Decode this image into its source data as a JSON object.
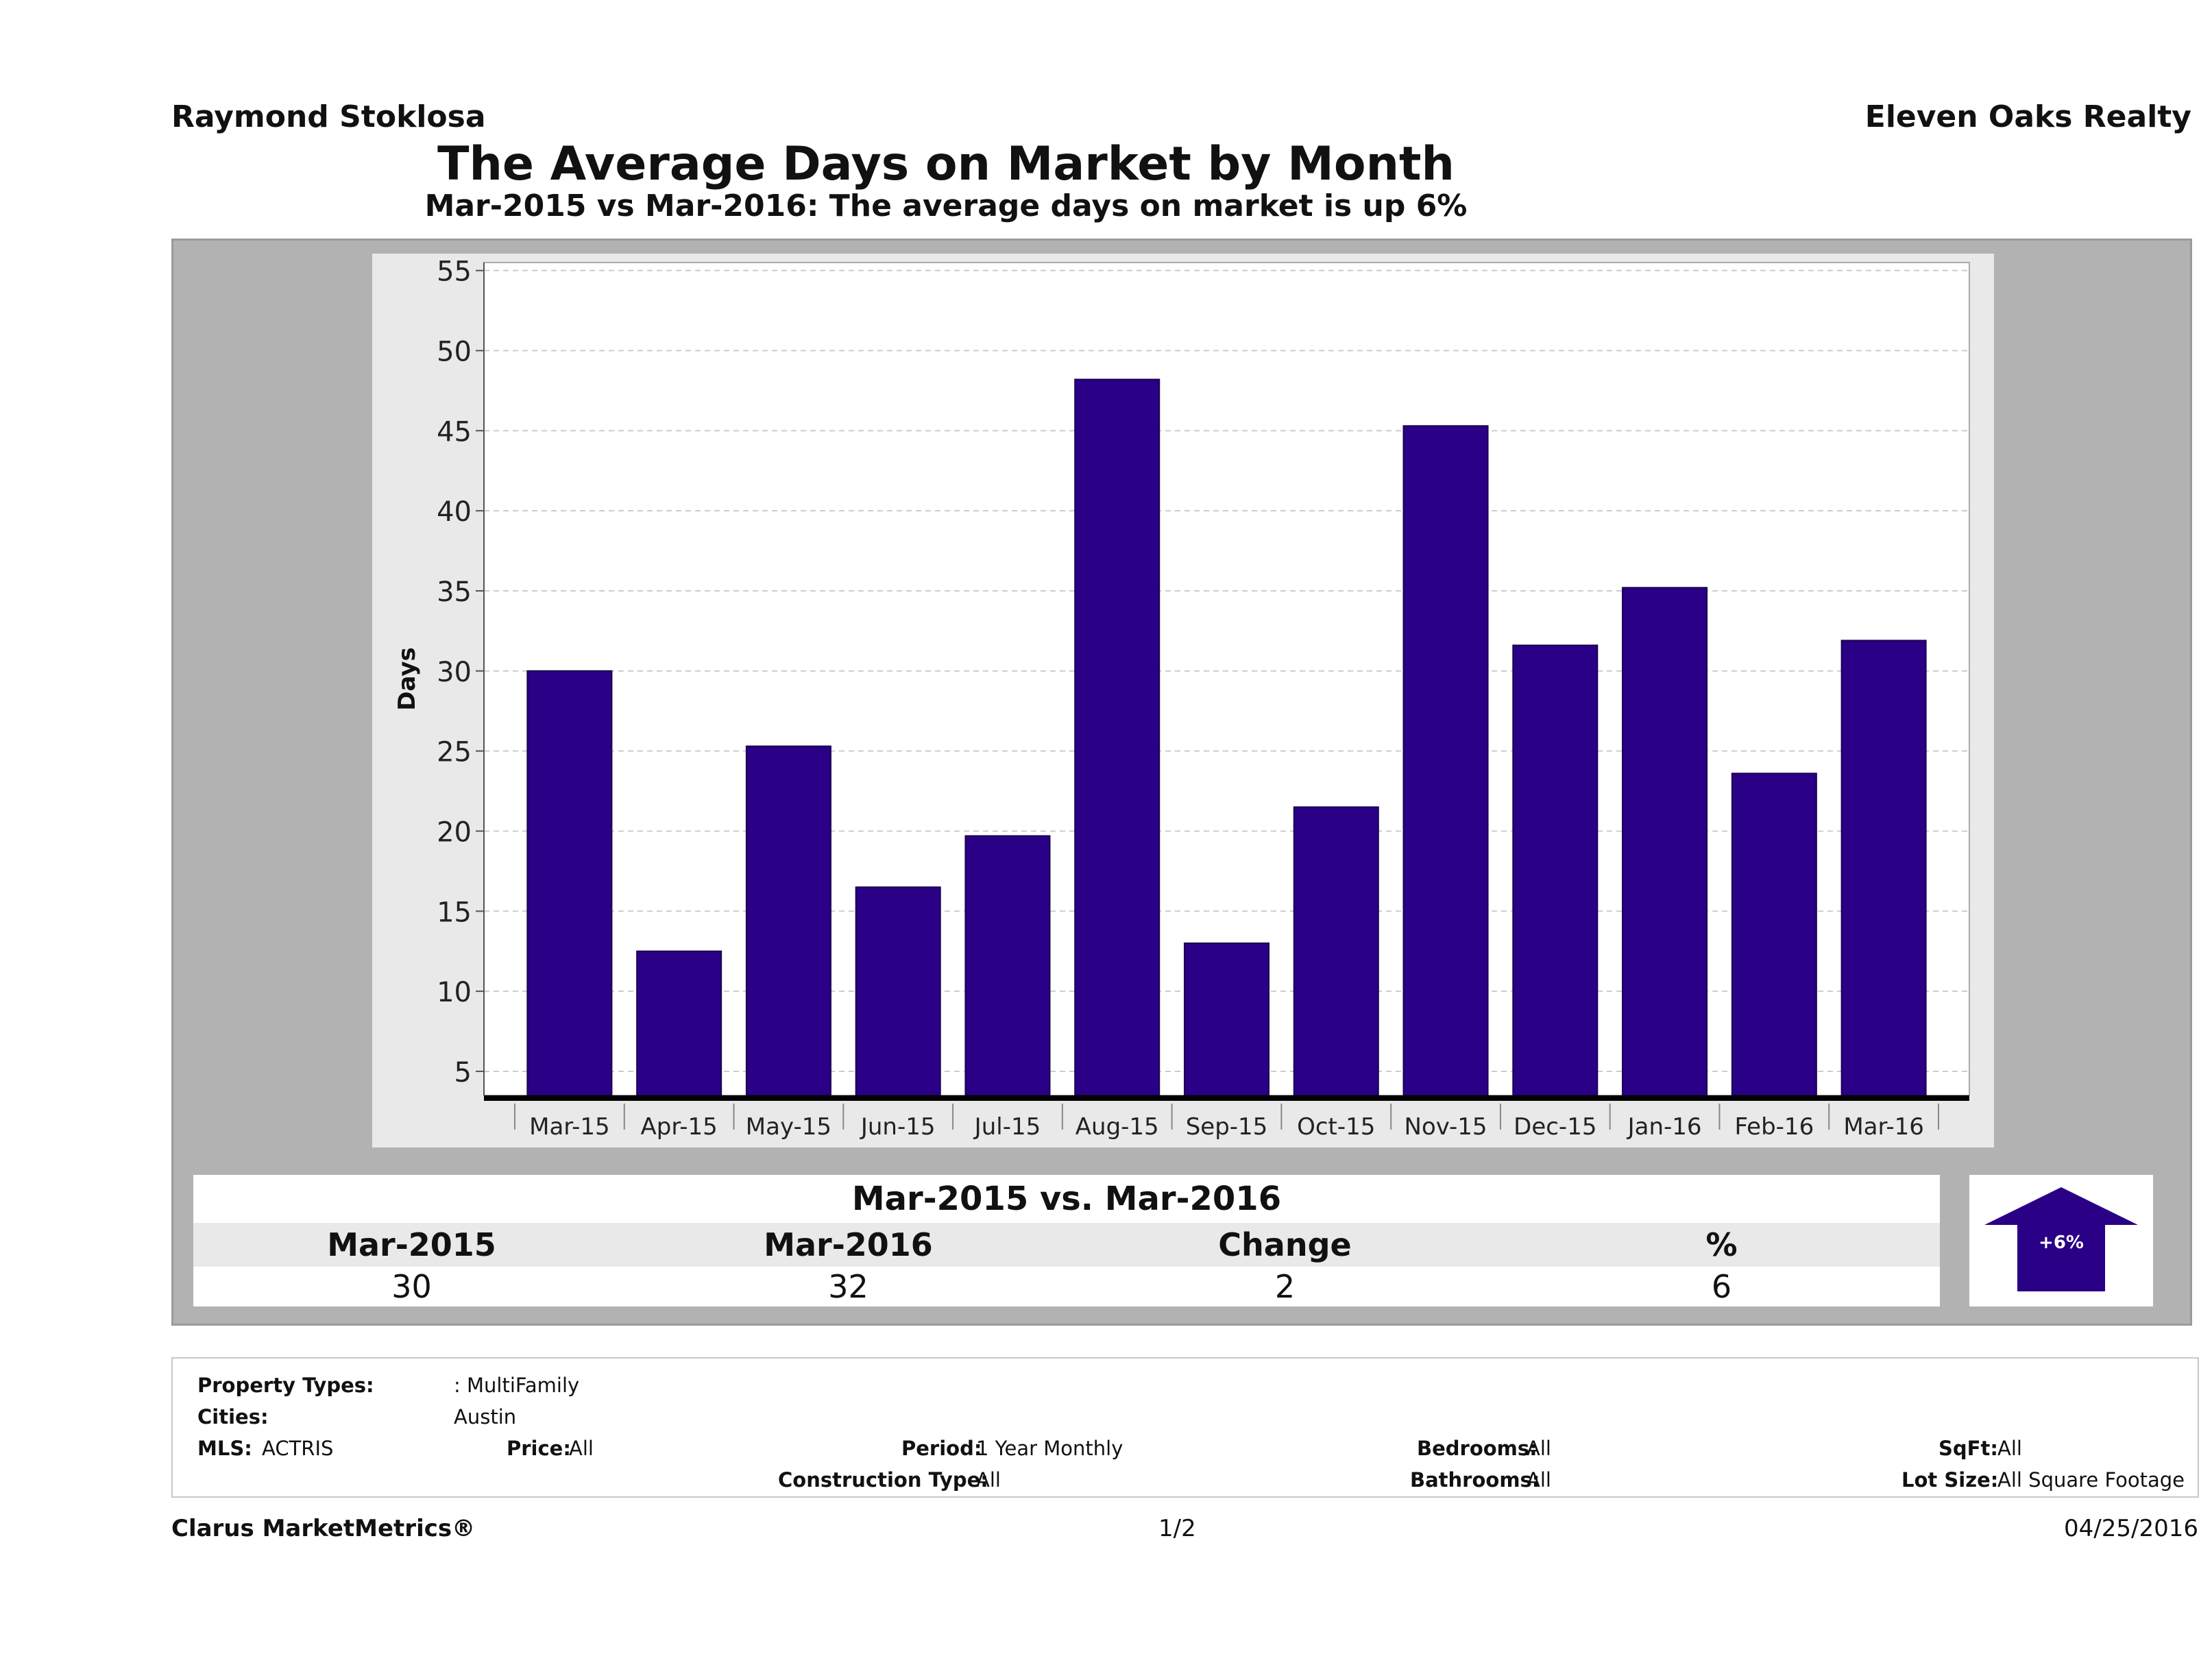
{
  "header": {
    "agent": "Raymond Stoklosa",
    "brokerage": "Eleven Oaks Realty",
    "title": "The Average Days on Market by Month",
    "subtitle": "Mar-2015 vs Mar-2016: The average days on market is up 6%"
  },
  "chart_data": {
    "type": "bar",
    "categories": [
      "Mar-15",
      "Apr-15",
      "May-15",
      "Jun-15",
      "Jul-15",
      "Aug-15",
      "Sep-15",
      "Oct-15",
      "Nov-15",
      "Dec-15",
      "Jan-16",
      "Feb-16",
      "Mar-16"
    ],
    "values": [
      30,
      12.5,
      25.3,
      16.5,
      19.7,
      48.2,
      13,
      21.5,
      45.3,
      31.6,
      35.2,
      23.6,
      31.9
    ],
    "ylabel": "Days",
    "xlabel": "",
    "yticks": [
      5,
      10,
      15,
      20,
      25,
      30,
      35,
      40,
      45,
      50,
      55
    ],
    "ylim": [
      3.5,
      55.5
    ],
    "grid": true,
    "bar_color": "#2a0087"
  },
  "comparison": {
    "heading": "Mar-2015 vs. Mar-2016",
    "labels": [
      "Mar-2015",
      "Mar-2016",
      "Change",
      "%"
    ],
    "values": [
      "30",
      "32",
      "2",
      "6"
    ],
    "badge": "+6%"
  },
  "filters": {
    "property_types_label": "Property Types:",
    "property_types_value": ": MultiFamily",
    "cities_label": "Cities:",
    "cities_value": "Austin",
    "mls_label": "MLS:",
    "mls_value": "ACTRIS",
    "price_label": "Price:",
    "price_value": "All",
    "period_label": "Period:",
    "period_value": "1 Year Monthly",
    "construction_label": "Construction Type:",
    "construction_value": "All",
    "bedrooms_label": "Bedrooms:",
    "bedrooms_value": "All",
    "bathrooms_label": "Bathrooms:",
    "bathrooms_value": "All",
    "sqft_label": "SqFt:",
    "sqft_value": "All",
    "lotsize_label": "Lot Size:",
    "lotsize_value": "All Square Footage"
  },
  "footer": {
    "brand": "Clarus MarketMetrics®",
    "page": "1/2",
    "date": "04/25/2016"
  }
}
